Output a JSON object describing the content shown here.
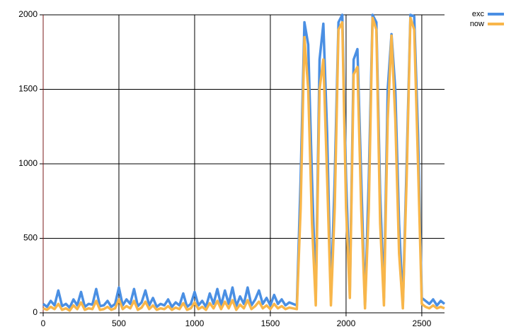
{
  "chart_data": {
    "type": "line",
    "x": [
      0,
      25,
      50,
      75,
      100,
      125,
      150,
      175,
      200,
      225,
      250,
      275,
      300,
      325,
      350,
      375,
      400,
      425,
      450,
      475,
      500,
      525,
      550,
      575,
      600,
      625,
      650,
      675,
      700,
      725,
      750,
      775,
      800,
      825,
      850,
      875,
      900,
      925,
      950,
      975,
      1000,
      1025,
      1050,
      1075,
      1100,
      1125,
      1150,
      1175,
      1200,
      1225,
      1250,
      1275,
      1300,
      1325,
      1350,
      1375,
      1400,
      1425,
      1450,
      1475,
      1500,
      1525,
      1550,
      1575,
      1600,
      1625,
      1650,
      1675,
      1700,
      1725,
      1750,
      1775,
      1800,
      1825,
      1850,
      1875,
      1900,
      1925,
      1950,
      1975,
      2000,
      2025,
      2050,
      2075,
      2100,
      2125,
      2150,
      2175,
      2200,
      2225,
      2250,
      2275,
      2300,
      2325,
      2350,
      2375,
      2400,
      2425,
      2450,
      2475,
      2500,
      2525,
      2550,
      2575,
      2600,
      2625,
      2650
    ],
    "series": [
      {
        "name": "exc",
        "color": "#4a8fe3",
        "values": [
          60,
          40,
          80,
          50,
          150,
          45,
          60,
          35,
          90,
          50,
          140,
          40,
          60,
          55,
          160,
          45,
          50,
          80,
          40,
          60,
          170,
          50,
          90,
          60,
          160,
          45,
          70,
          150,
          50,
          100,
          40,
          60,
          50,
          90,
          40,
          70,
          50,
          130,
          40,
          60,
          140,
          50,
          80,
          40,
          130,
          60,
          160,
          50,
          150,
          60,
          170,
          45,
          110,
          60,
          170,
          50,
          90,
          150,
          60,
          100,
          50,
          120,
          60,
          90,
          50,
          70,
          60,
          50,
          900,
          1950,
          1800,
          900,
          100,
          1700,
          1940,
          1200,
          100,
          900,
          1950,
          2000,
          900,
          150,
          1700,
          1770,
          900,
          50,
          900,
          2000,
          1950,
          800,
          100,
          1500,
          1870,
          1500,
          600,
          50,
          1000,
          2000,
          1990,
          1200,
          100,
          80,
          60,
          90,
          50,
          80,
          60
        ]
      },
      {
        "name": "now",
        "color": "#f8b64a",
        "values": [
          30,
          20,
          40,
          25,
          60,
          20,
          30,
          15,
          50,
          25,
          70,
          20,
          30,
          25,
          80,
          20,
          25,
          40,
          20,
          30,
          90,
          25,
          45,
          30,
          80,
          20,
          35,
          75,
          25,
          50,
          20,
          30,
          25,
          45,
          20,
          35,
          25,
          65,
          20,
          30,
          70,
          25,
          40,
          20,
          65,
          30,
          80,
          25,
          75,
          30,
          85,
          20,
          55,
          30,
          85,
          25,
          45,
          75,
          30,
          50,
          25,
          60,
          30,
          45,
          25,
          35,
          30,
          25,
          700,
          1850,
          1500,
          600,
          50,
          1500,
          1700,
          900,
          50,
          700,
          1900,
          1950,
          700,
          100,
          1600,
          1650,
          700,
          30,
          700,
          1980,
          1900,
          600,
          50,
          1300,
          1860,
          1300,
          400,
          30,
          900,
          1980,
          1900,
          1000,
          60,
          40,
          30,
          50,
          30,
          40,
          30
        ]
      }
    ],
    "xlim": [
      0,
      2650
    ],
    "ylim": [
      0,
      2000
    ],
    "xticks": [
      0,
      500,
      1000,
      1500,
      2000,
      2500
    ],
    "yticks": [
      0,
      500,
      1000,
      1500,
      2000
    ],
    "grid": true,
    "legend": "top-right"
  }
}
